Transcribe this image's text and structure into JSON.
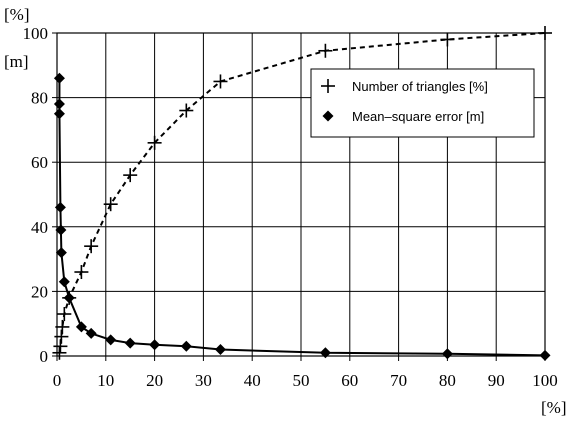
{
  "chart_data": {
    "type": "line",
    "title": "",
    "xlabel": "[%]",
    "ylabel_units": [
      "[%]",
      "[m]"
    ],
    "xlim": [
      0,
      100
    ],
    "ylim": [
      0,
      100
    ],
    "x_ticks": [
      0,
      10,
      20,
      30,
      40,
      50,
      60,
      70,
      80,
      90,
      100
    ],
    "y_ticks": [
      0,
      20,
      40,
      60,
      80,
      100
    ],
    "grid": true,
    "legend_position": "top-right",
    "series": [
      {
        "name": "Number of triangles [%]",
        "marker": "plus",
        "line_style": "dashed",
        "points": [
          [
            0.5,
            1
          ],
          [
            0.7,
            3
          ],
          [
            0.9,
            6
          ],
          [
            1.1,
            9
          ],
          [
            1.5,
            13
          ],
          [
            2.5,
            18
          ],
          [
            5,
            26
          ],
          [
            7,
            34
          ],
          [
            11,
            47
          ],
          [
            15,
            56
          ],
          [
            20,
            66
          ],
          [
            26.5,
            76
          ],
          [
            33.5,
            85
          ],
          [
            55,
            94.5
          ],
          [
            80,
            98
          ],
          [
            100,
            100
          ]
        ]
      },
      {
        "name": "Mean–square error [m]",
        "marker": "diamond",
        "line_style": "solid",
        "points": [
          [
            0.5,
            86
          ],
          [
            0.5,
            78
          ],
          [
            0.5,
            75
          ],
          [
            0.7,
            46
          ],
          [
            0.8,
            39
          ],
          [
            0.9,
            32
          ],
          [
            1.5,
            23
          ],
          [
            2.5,
            18
          ],
          [
            5,
            9
          ],
          [
            7,
            7
          ],
          [
            11,
            5
          ],
          [
            15,
            4
          ],
          [
            20,
            3.5
          ],
          [
            26.5,
            3
          ],
          [
            33.5,
            2
          ],
          [
            55,
            1
          ],
          [
            80,
            0.7
          ],
          [
            100,
            0.2
          ]
        ]
      }
    ]
  }
}
